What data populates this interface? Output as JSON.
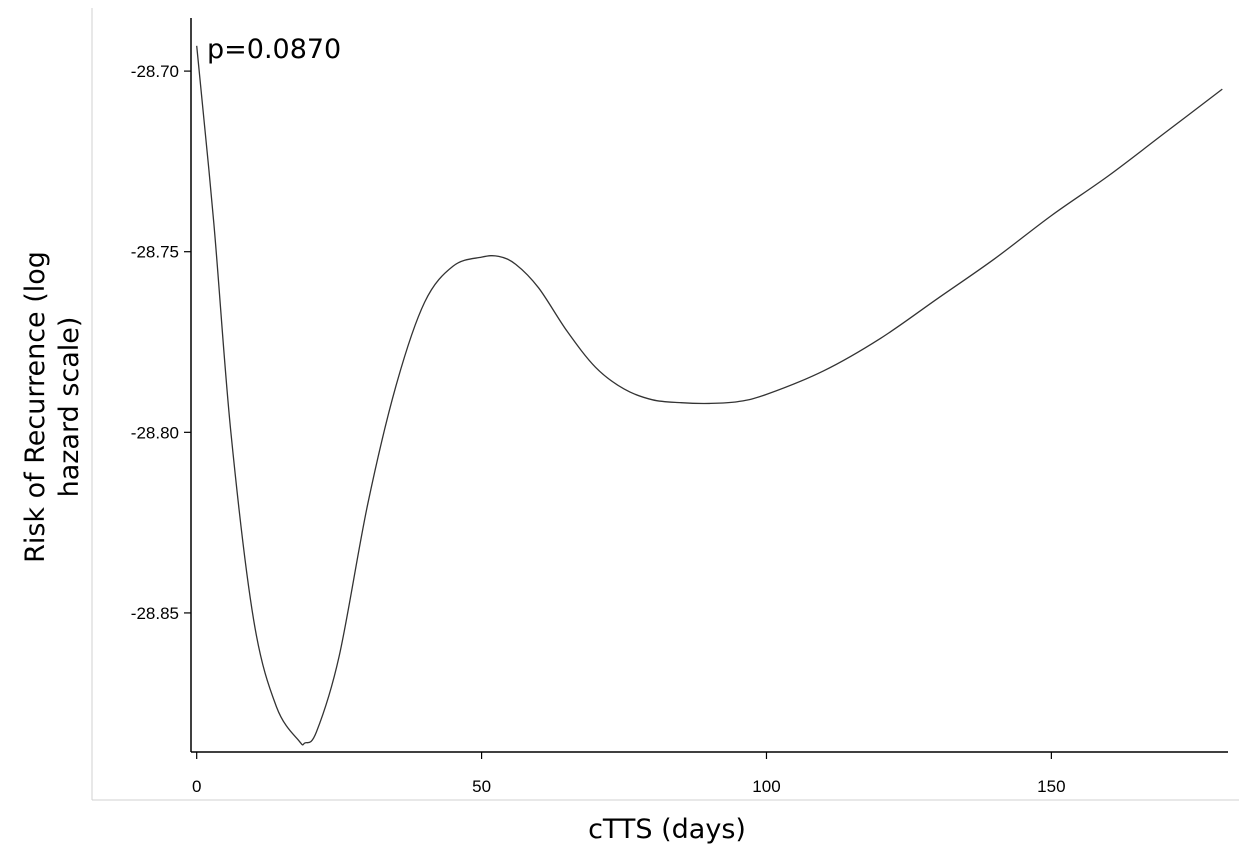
{
  "chart_data": {
    "type": "line",
    "title": "",
    "xlabel": "cTTS (days)",
    "ylabel": "Risk of Recurrence (log hazard scale)",
    "ylabel_lines": [
      "Risk of Recurrence (log",
      "hazard scale)"
    ],
    "annotation": "p=0.0870",
    "xlim": [
      -1,
      181
    ],
    "ylim": [
      -28.8885,
      -28.6853
    ],
    "x_ticks": [
      0,
      50,
      100,
      150
    ],
    "x_tick_labels": [
      "0",
      "50",
      "100",
      "150"
    ],
    "y_ticks": [
      -28.7,
      -28.75,
      -28.8,
      -28.85
    ],
    "y_tick_labels": [
      "-28.70",
      "-28.75",
      "-28.80",
      "-28.85"
    ],
    "grid": false,
    "legend": "none",
    "line_color": "#333333",
    "series": [
      {
        "x": [
          0,
          3,
          6,
          10,
          14,
          18,
          19,
          21,
          25,
          30,
          35,
          40,
          45,
          50,
          53,
          56,
          60,
          65,
          70,
          75,
          80,
          85,
          90,
          95,
          100,
          110,
          120,
          130,
          140,
          150,
          160,
          170,
          180
        ],
        "y": [
          -28.693,
          -28.742,
          -28.8,
          -28.852,
          -28.876,
          -28.8855,
          -28.886,
          -28.883,
          -28.862,
          -28.82,
          -28.787,
          -28.764,
          -28.754,
          -28.7515,
          -28.7513,
          -28.7535,
          -28.76,
          -28.772,
          -28.782,
          -28.788,
          -28.791,
          -28.7918,
          -28.792,
          -28.7915,
          -28.7895,
          -28.783,
          -28.774,
          -28.763,
          -28.752,
          -28.74,
          -28.729,
          -28.717,
          -28.705
        ]
      }
    ]
  }
}
